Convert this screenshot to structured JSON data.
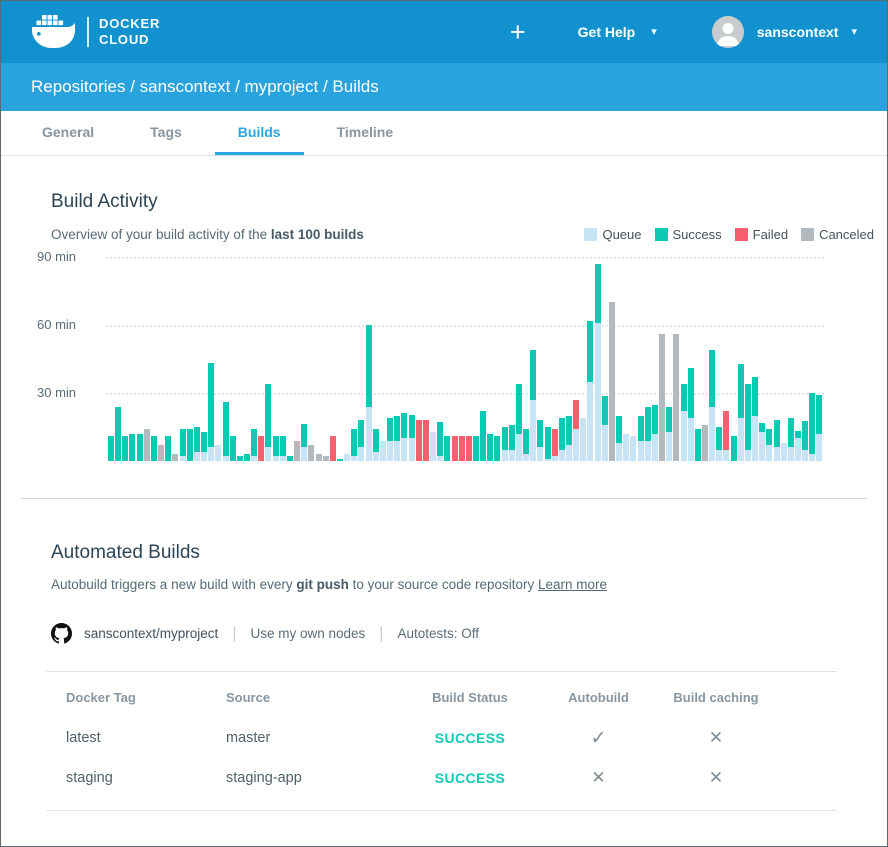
{
  "navbar": {
    "brand_line1": "DOCKER",
    "brand_line2": "CLOUD",
    "add_label": "+",
    "help_label": "Get Help",
    "caret": "▾",
    "username": "sanscontext"
  },
  "breadcrumb": "Repositories / sanscontext / myproject / Builds",
  "tabs": [
    {
      "label": "General",
      "active": false
    },
    {
      "label": "Tags",
      "active": false
    },
    {
      "label": "Builds",
      "active": true
    },
    {
      "label": "Timeline",
      "active": false
    }
  ],
  "build_activity": {
    "title": "Build Activity",
    "subtitle_prefix": "Overview of your build activity of the ",
    "subtitle_bold": "last 100 builds"
  },
  "chart_data": {
    "type": "stacked_bar",
    "title": "Build Activity",
    "unit": "min",
    "ylim": [
      0,
      93
    ],
    "y_ticks": [
      {
        "label": "90 min",
        "value": 90
      },
      {
        "label": "60 min",
        "value": 60
      },
      {
        "label": "30 min",
        "value": 30
      }
    ],
    "grid": "dotted horizontal",
    "legend_position": "top-right",
    "series_order": [
      "queue",
      "success",
      "failed",
      "canceled"
    ],
    "legend": [
      {
        "label": "Queue",
        "color": "#c6e4f6"
      },
      {
        "label": "Success",
        "color": "#0cc9b4"
      },
      {
        "label": "Failed",
        "color": "#f4606d"
      },
      {
        "label": "Canceled",
        "color": "#b2bac0"
      }
    ],
    "bars_note": "each bar = one build, segments [queue, success, failed, canceled] in minutes",
    "bars": [
      [
        0,
        11,
        0,
        0
      ],
      [
        0,
        24,
        0,
        0
      ],
      [
        0,
        11,
        0,
        0
      ],
      [
        0,
        12,
        0,
        0
      ],
      [
        0,
        12,
        0,
        0
      ],
      [
        0,
        0,
        0,
        14
      ],
      [
        0,
        11,
        0,
        0
      ],
      [
        0,
        0,
        0,
        7
      ],
      [
        0,
        11,
        0,
        0
      ],
      [
        0,
        0,
        0,
        3
      ],
      [
        2,
        12,
        0,
        0
      ],
      [
        0,
        14,
        0,
        0
      ],
      [
        4,
        11,
        0,
        0
      ],
      [
        4,
        9,
        0,
        0
      ],
      [
        6,
        37,
        0,
        0
      ],
      [
        7,
        0,
        0,
        0
      ],
      [
        2,
        24,
        0,
        0
      ],
      [
        0,
        11,
        0,
        0
      ],
      [
        0,
        2,
        0,
        0
      ],
      [
        0,
        3,
        0,
        0
      ],
      [
        2,
        12,
        0,
        0
      ],
      [
        0,
        0,
        11,
        0
      ],
      [
        6,
        28,
        0,
        0
      ],
      [
        2,
        9,
        0,
        0
      ],
      [
        2,
        9,
        0,
        0
      ],
      [
        0,
        2,
        0,
        0
      ],
      [
        0,
        0,
        0,
        9
      ],
      [
        6,
        10,
        0,
        0
      ],
      [
        0,
        0,
        0,
        7
      ],
      [
        0,
        0,
        0,
        3
      ],
      [
        0,
        0,
        0,
        2
      ],
      [
        0,
        0,
        11,
        0
      ],
      [
        0,
        1,
        0,
        0
      ],
      [
        3,
        0,
        0,
        0
      ],
      [
        2,
        12,
        0,
        0
      ],
      [
        6,
        12,
        0,
        0
      ],
      [
        24,
        36,
        0,
        0
      ],
      [
        4,
        10,
        0,
        0
      ],
      [
        9,
        0,
        0,
        0
      ],
      [
        9,
        10,
        0,
        0
      ],
      [
        9,
        11,
        0,
        0
      ],
      [
        10,
        11,
        0,
        0
      ],
      [
        10,
        10,
        0,
        0
      ],
      [
        0,
        0,
        18,
        0
      ],
      [
        0,
        0,
        18,
        0
      ],
      [
        13,
        0,
        0,
        0
      ],
      [
        2,
        15,
        0,
        0
      ],
      [
        0,
        11,
        0,
        0
      ],
      [
        0,
        0,
        11,
        0
      ],
      [
        0,
        0,
        11,
        0
      ],
      [
        0,
        0,
        11,
        0
      ],
      [
        0,
        11,
        0,
        0
      ],
      [
        0,
        22,
        0,
        0
      ],
      [
        0,
        12,
        0,
        0
      ],
      [
        0,
        11,
        0,
        0
      ],
      [
        5,
        10,
        0,
        0
      ],
      [
        5,
        11,
        0,
        0
      ],
      [
        12,
        22,
        0,
        0
      ],
      [
        3,
        11,
        0,
        0
      ],
      [
        27,
        22,
        0,
        0
      ],
      [
        6,
        12,
        0,
        0
      ],
      [
        1,
        14,
        0,
        0
      ],
      [
        2,
        0,
        12,
        0
      ],
      [
        5,
        14,
        0,
        0
      ],
      [
        7,
        13,
        0,
        0
      ],
      [
        14,
        0,
        13,
        0
      ],
      [
        19,
        0,
        0,
        0
      ],
      [
        35,
        27,
        0,
        0
      ],
      [
        61,
        26,
        0,
        0
      ],
      [
        16,
        13,
        0,
        0
      ],
      [
        0,
        0,
        0,
        70
      ],
      [
        8,
        12,
        0,
        0
      ],
      [
        12,
        0,
        0,
        0
      ],
      [
        11,
        0,
        0,
        0
      ],
      [
        9,
        11,
        0,
        0
      ],
      [
        9,
        15,
        0,
        0
      ],
      [
        12,
        13,
        0,
        0
      ],
      [
        0,
        0,
        0,
        56
      ],
      [
        13,
        11,
        0,
        0
      ],
      [
        0,
        0,
        0,
        56
      ],
      [
        22,
        12,
        0,
        0
      ],
      [
        19,
        22,
        0,
        0
      ],
      [
        0,
        14,
        0,
        0
      ],
      [
        0,
        0,
        0,
        16
      ],
      [
        24,
        25,
        0,
        0
      ],
      [
        5,
        10,
        0,
        0
      ],
      [
        5,
        0,
        17,
        0
      ],
      [
        0,
        11,
        0,
        0
      ],
      [
        19,
        24,
        0,
        0
      ],
      [
        5,
        29,
        0,
        0
      ],
      [
        20,
        17,
        0,
        0
      ],
      [
        13,
        4,
        0,
        0
      ],
      [
        7,
        7,
        0,
        0
      ],
      [
        6,
        12,
        0,
        0
      ],
      [
        8,
        0,
        0,
        0
      ],
      [
        6,
        13,
        0,
        0
      ],
      [
        10,
        3,
        0,
        0
      ],
      [
        5,
        13,
        0,
        0
      ],
      [
        3,
        27,
        0,
        0
      ],
      [
        12,
        17,
        0,
        0
      ]
    ]
  },
  "automated_builds": {
    "title": "Automated Builds",
    "desc_prefix": "Autobuild triggers a new build with every ",
    "desc_bold": "git push",
    "desc_suffix": " to your source code repository ",
    "learn_more": "Learn more",
    "repo_name": "sanscontext/myproject",
    "nodes_label": "Use my own nodes",
    "autotests_label": "Autotests: Off"
  },
  "table": {
    "headers": [
      "Docker Tag",
      "Source",
      "Build Status",
      "Autobuild",
      "Build caching"
    ],
    "rows": [
      {
        "tag": "latest",
        "source": "master",
        "status": "SUCCESS",
        "autobuild": true,
        "caching": false
      },
      {
        "tag": "staging",
        "source": "staging-app",
        "status": "SUCCESS",
        "autobuild": false,
        "caching": false
      }
    ],
    "check_glyph": "✓",
    "cross_glyph": "✕"
  },
  "colors": {
    "navbar": "#1191ce",
    "breadcrumb": "#29a3dd",
    "tab_active": "#29a6e0",
    "success_teal": "#0cc9b4",
    "failed_red": "#f4606d",
    "queue_blue": "#c6e4f6",
    "canceled_gray": "#b2bac0"
  }
}
